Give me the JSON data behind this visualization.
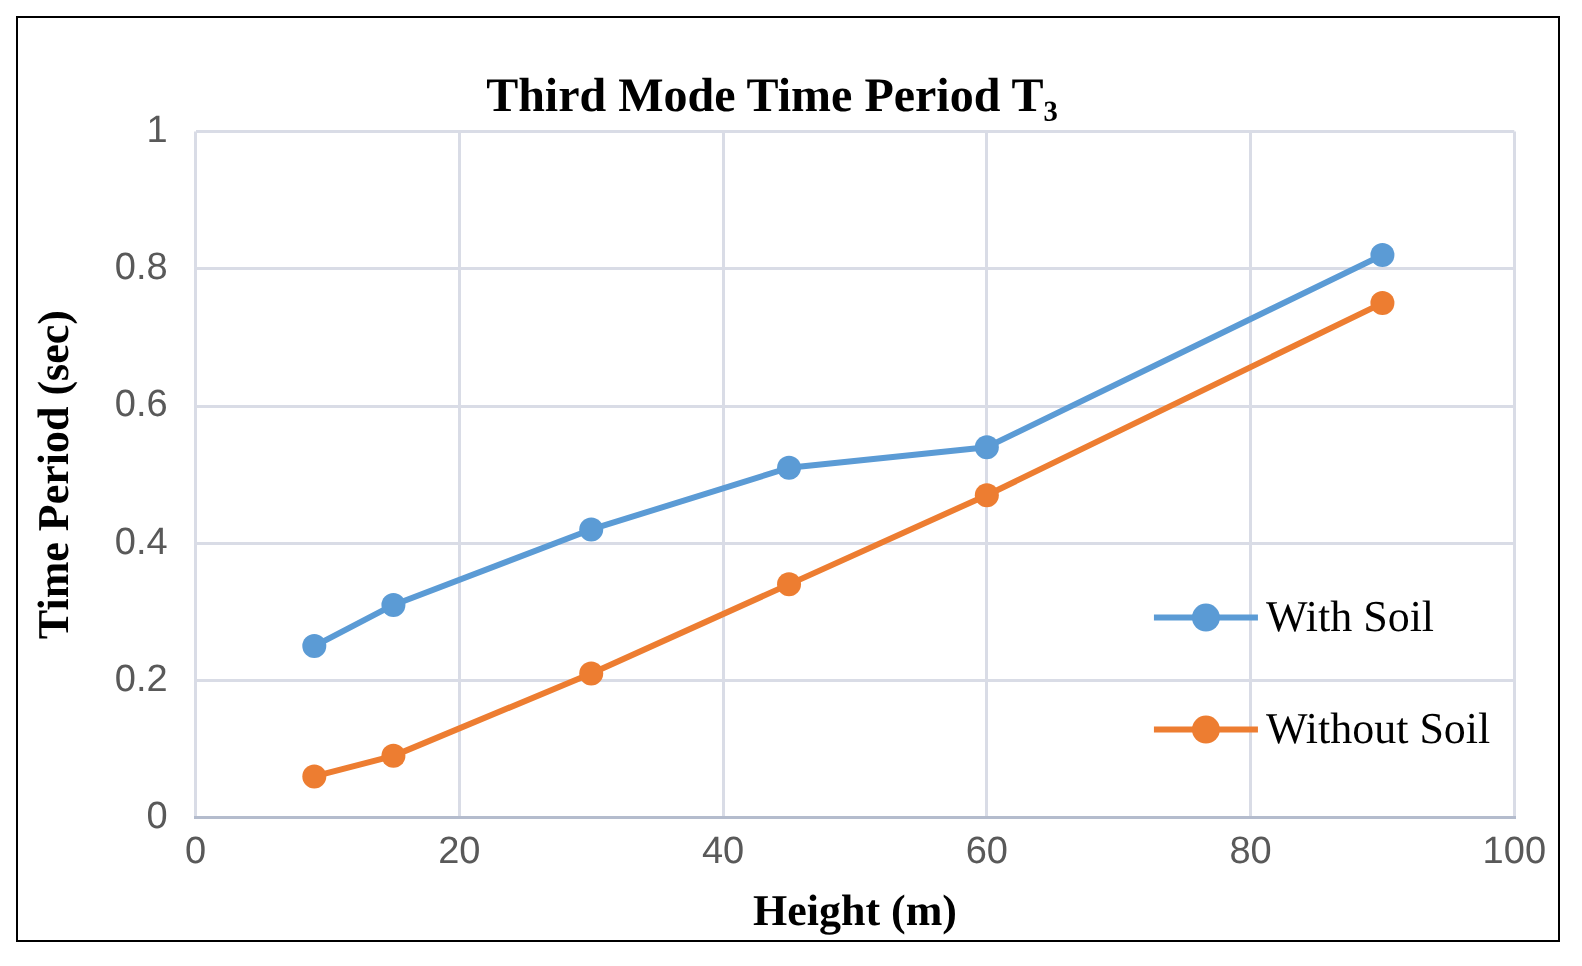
{
  "chart_data": {
    "type": "line",
    "title": "Third Mode Time Period T₃",
    "xlabel": "Height (m)",
    "ylabel": "Time Period (sec)",
    "x": [
      9,
      15,
      30,
      45,
      60,
      90
    ],
    "series": [
      {
        "name": "With Soil",
        "color": "#5b9bd5",
        "values": [
          0.25,
          0.31,
          0.42,
          0.51,
          0.54,
          0.82
        ]
      },
      {
        "name": "Without Soil",
        "color": "#ed7d31",
        "values": [
          0.06,
          0.09,
          0.21,
          0.34,
          0.47,
          0.75
        ]
      }
    ],
    "xlim": [
      0,
      100
    ],
    "xticks": [
      0,
      20,
      40,
      60,
      80,
      100
    ],
    "ylim": [
      0,
      1
    ],
    "yticks": [
      0,
      0.2,
      0.4,
      0.6,
      0.8,
      1
    ],
    "grid": true,
    "legend": "bottom right",
    "marker": "circle",
    "line_style": "solid"
  }
}
